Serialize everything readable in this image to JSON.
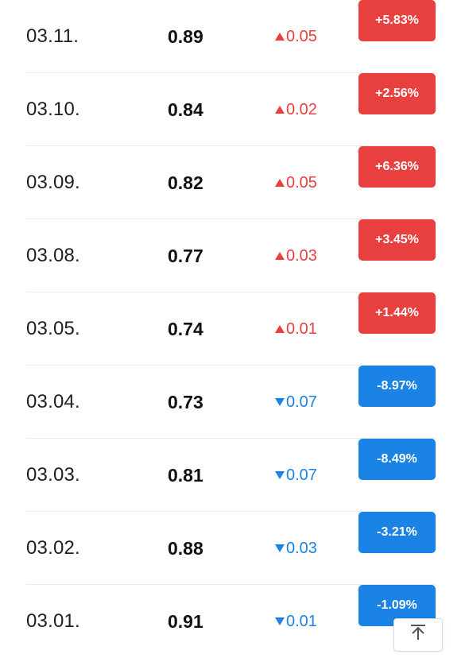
{
  "rows": [
    {
      "date": "03.11.",
      "price": "0.89",
      "change": "0.05",
      "percent": "+5.83%",
      "direction": "up"
    },
    {
      "date": "03.10.",
      "price": "0.84",
      "change": "0.02",
      "percent": "+2.56%",
      "direction": "up"
    },
    {
      "date": "03.09.",
      "price": "0.82",
      "change": "0.05",
      "percent": "+6.36%",
      "direction": "up"
    },
    {
      "date": "03.08.",
      "price": "0.77",
      "change": "0.03",
      "percent": "+3.45%",
      "direction": "up"
    },
    {
      "date": "03.05.",
      "price": "0.74",
      "change": "0.01",
      "percent": "+1.44%",
      "direction": "up"
    },
    {
      "date": "03.04.",
      "price": "0.73",
      "change": "0.07",
      "percent": "-8.97%",
      "direction": "down"
    },
    {
      "date": "03.03.",
      "price": "0.81",
      "change": "0.07",
      "percent": "-8.49%",
      "direction": "down"
    },
    {
      "date": "03.02.",
      "price": "0.88",
      "change": "0.03",
      "percent": "-3.21%",
      "direction": "down"
    },
    {
      "date": "03.01.",
      "price": "0.91",
      "change": "0.01",
      "percent": "-1.09%",
      "direction": "down"
    }
  ],
  "colors": {
    "up": "#e8403f",
    "down": "#1a83e5"
  },
  "icons": {
    "up": "triangle-up-icon",
    "down": "triangle-down-icon",
    "back_to_top": "arrow-up-to-line-icon"
  }
}
